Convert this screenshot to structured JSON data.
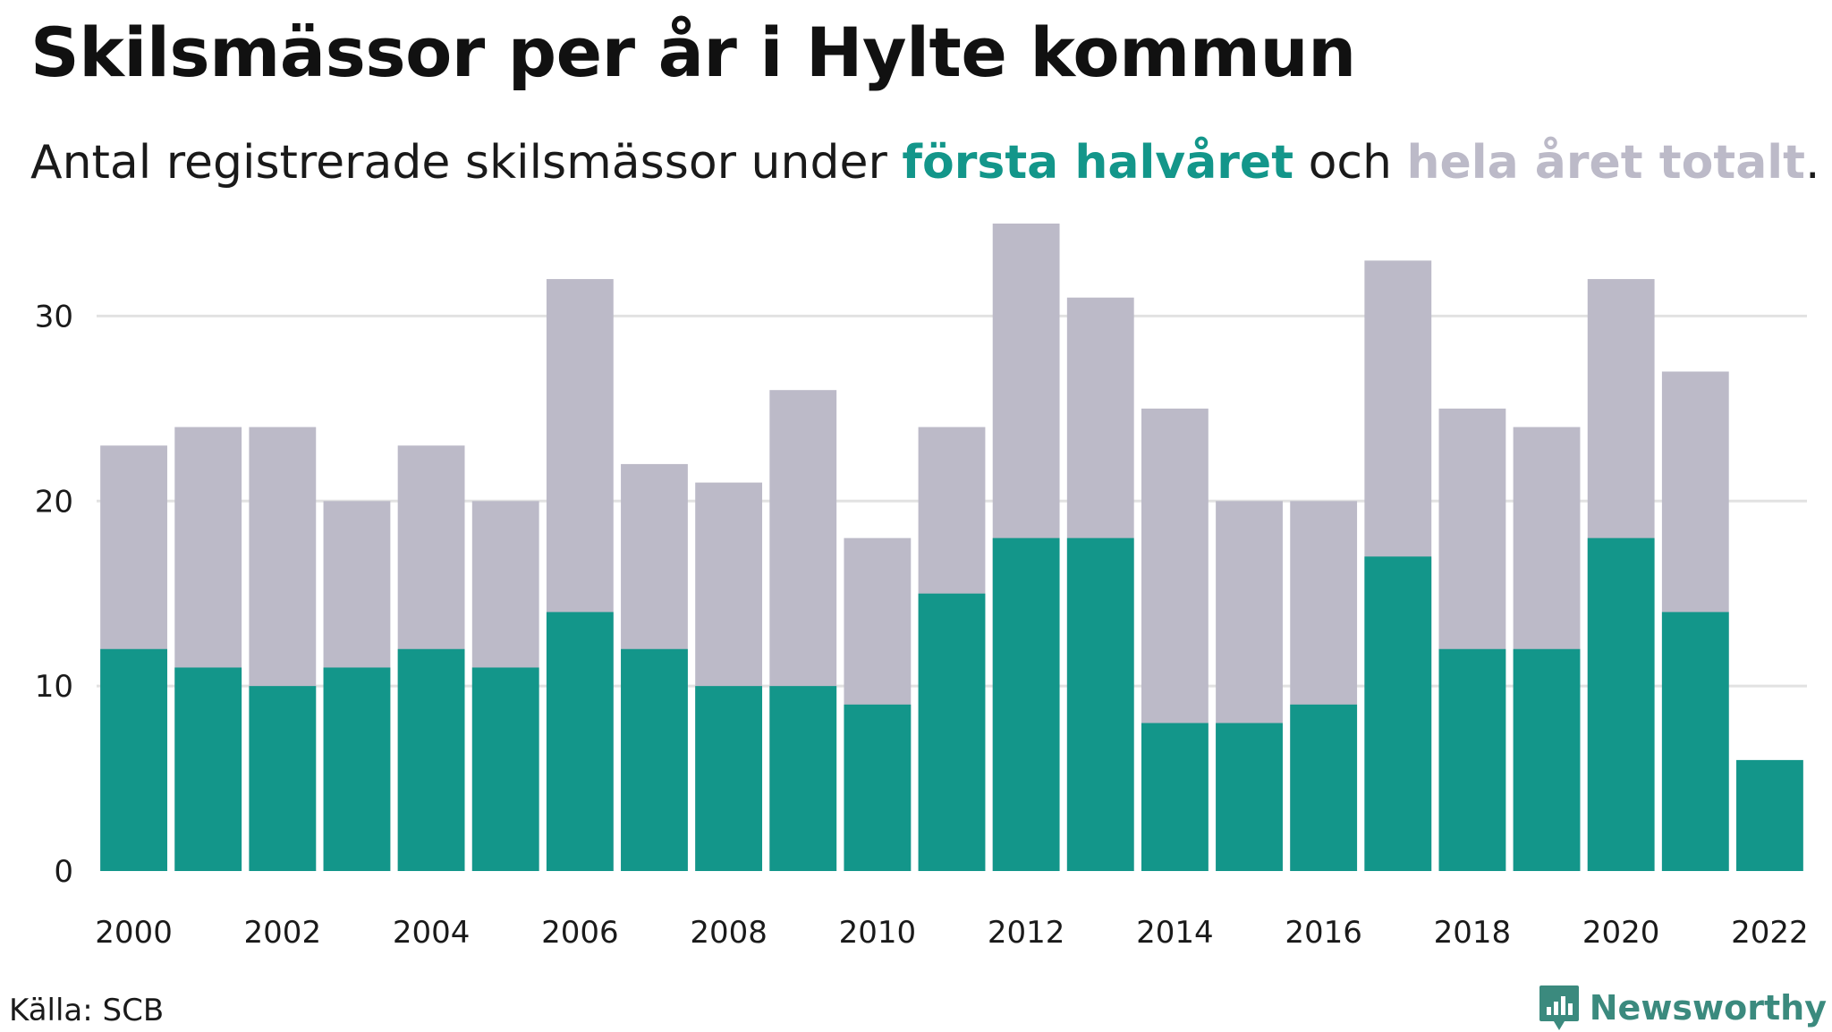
{
  "title": "Skilsmässor per år i Hylte kommun",
  "subtitle": {
    "part1": "Antal registrerade skilsmässor under ",
    "highlight1": "första halvåret",
    "part2": " och ",
    "highlight2": "hela året totalt",
    "part3": "."
  },
  "source": "Källa: SCB",
  "brand": "Newsworthy",
  "colors": {
    "first_half": "#13968a",
    "total": "#bcbac8",
    "grid": "#e2e2e2",
    "brand": "#3b8a7e"
  },
  "chart_data": {
    "type": "bar",
    "stacked": false,
    "overlay": true,
    "categories": [
      "2000",
      "2001",
      "2002",
      "2003",
      "2004",
      "2005",
      "2006",
      "2007",
      "2008",
      "2009",
      "2010",
      "2011",
      "2012",
      "2013",
      "2014",
      "2015",
      "2016",
      "2017",
      "2018",
      "2019",
      "2020",
      "2021",
      "2022"
    ],
    "x_tick_labels": [
      "2000",
      "2002",
      "2004",
      "2006",
      "2008",
      "2010",
      "2012",
      "2014",
      "2016",
      "2018",
      "2020",
      "2022"
    ],
    "series": [
      {
        "name": "hela året totalt",
        "values": [
          23,
          24,
          24,
          20,
          23,
          20,
          32,
          22,
          21,
          26,
          18,
          24,
          35,
          31,
          25,
          20,
          20,
          33,
          25,
          24,
          32,
          27,
          null
        ]
      },
      {
        "name": "första halvåret",
        "values": [
          12,
          11,
          10,
          11,
          12,
          11,
          14,
          12,
          10,
          10,
          9,
          15,
          18,
          18,
          8,
          8,
          9,
          17,
          12,
          12,
          18,
          14,
          6
        ]
      }
    ],
    "yticks": [
      0,
      10,
      20,
      30
    ],
    "ylim": [
      0,
      35
    ],
    "grid": true,
    "legend": "in subtitle"
  }
}
